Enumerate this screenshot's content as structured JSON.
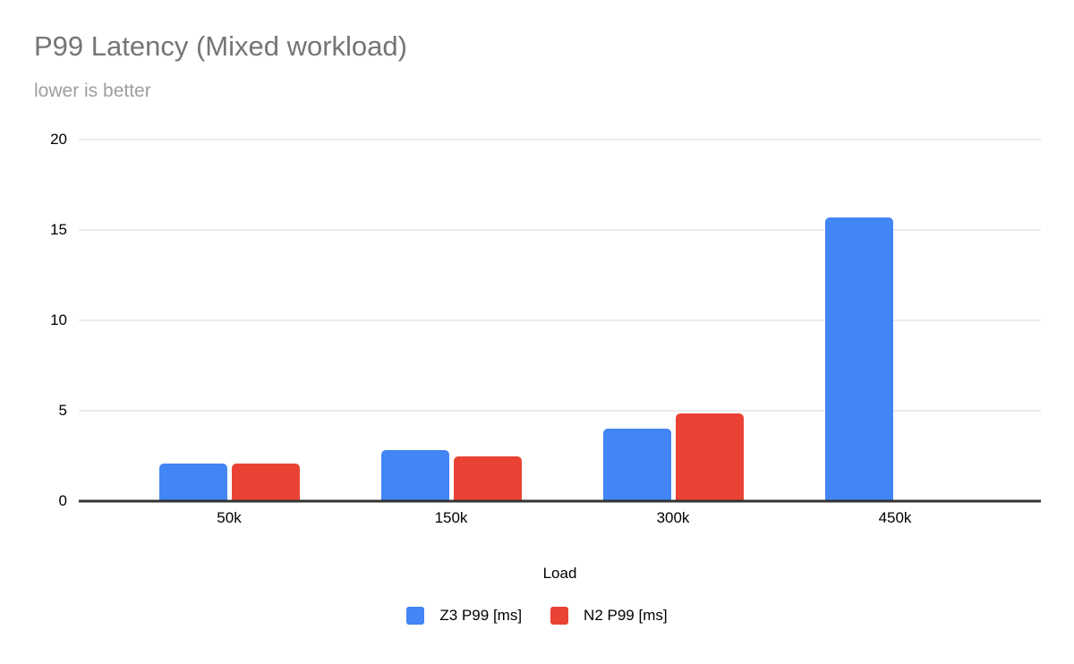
{
  "title": "P99 Latency (Mixed workload)",
  "subtitle": "lower is better",
  "colors": {
    "series_blue": "#4285f4",
    "series_red": "#ea4335",
    "title_text": "#757575",
    "subtitle_text": "#9e9e9e",
    "gridline": "#dadada",
    "axis_line": "#333333",
    "tick_text": "#000000",
    "background": "#ffffff"
  },
  "chart_data": {
    "type": "bar",
    "categories": [
      "50k",
      "150k",
      "300k",
      "450k"
    ],
    "series": [
      {
        "name": "Z3 P99 [ms]",
        "color": "#4285f4",
        "values": [
          2.1,
          2.8,
          4.0,
          15.7
        ]
      },
      {
        "name": "N2 P99 [ms]",
        "color": "#ea4335",
        "values": [
          2.1,
          2.5,
          4.85,
          null
        ]
      }
    ],
    "title": "P99 Latency (Mixed workload)",
    "subtitle": "lower is better",
    "xlabel": "Load",
    "ylabel": "",
    "ylim": [
      0,
      20
    ],
    "yticks": [
      0,
      5,
      10,
      15,
      20
    ],
    "grid": true,
    "legend_position": "bottom"
  }
}
